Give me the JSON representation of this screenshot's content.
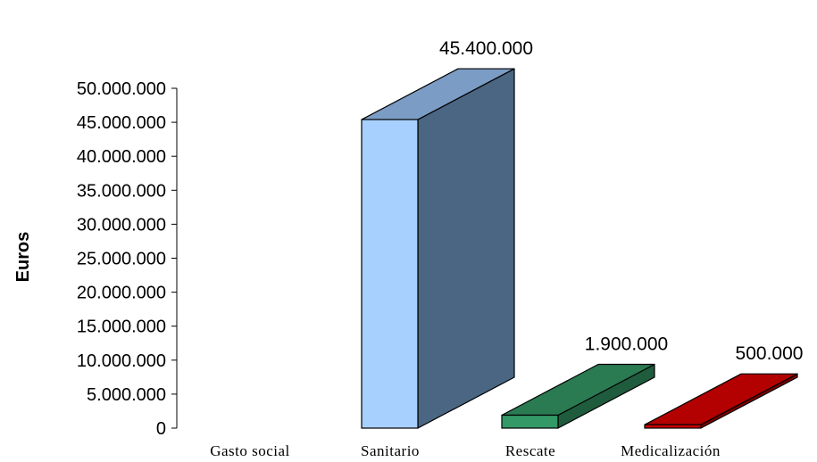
{
  "chart_data": {
    "type": "bar",
    "ylabel": "Euros",
    "ylim": [
      0,
      50000000
    ],
    "ytick_step": 5000000,
    "ytick_labels": [
      "0",
      "5.000.000",
      "10.000.000",
      "15.000.000",
      "20.000.000",
      "25.000.000",
      "30.000.000",
      "35.000.000",
      "40.000.000",
      "45.000.000",
      "50.000.000"
    ],
    "categories": [
      "Gasto social",
      "Sanitario",
      "Rescate",
      "Medicalización"
    ],
    "values": [
      0,
      45400000,
      1900000,
      500000
    ],
    "data_labels": [
      "",
      "45.400.000",
      "1.900.000",
      "500.000"
    ],
    "colors": [
      {
        "front": "#a8d0ff",
        "top": "#7b9cc4",
        "side": "#4a6682"
      },
      {
        "front": "#a8d0ff",
        "top": "#7b9cc4",
        "side": "#4a6682"
      },
      {
        "front": "#339966",
        "top": "#2a7a52",
        "side": "#1f5c3d"
      },
      {
        "front": "#cc0000",
        "top": "#b30000",
        "side": "#800000"
      }
    ],
    "grid": false,
    "legend": "none"
  }
}
